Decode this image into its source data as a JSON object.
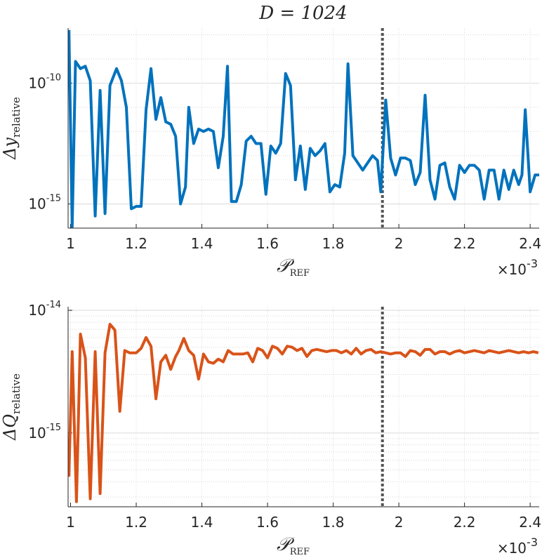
{
  "chart_data": [
    {
      "type": "line",
      "title": "D = 1024",
      "x_label": {
        "main": "𝒫",
        "sub": "REF"
      },
      "x_multiplier": {
        "base": "×10",
        "exponent": "-3"
      },
      "y_label": {
        "main": "Δy",
        "sub": "relative"
      },
      "xlim": [
        0.9925,
        2.4275
      ],
      "xticks": [
        1,
        1.2,
        1.4,
        1.6,
        1.8,
        2,
        2.2,
        2.4
      ],
      "ylim": [
        1e-16,
        1.9e-08
      ],
      "yscale": "log",
      "yticks": [
        {
          "value": 1e-15,
          "label": "10",
          "exponent": "-15"
        },
        {
          "value": 1e-10,
          "label": "10",
          "exponent": "-10"
        }
      ],
      "grid": true,
      "minor_grid": true,
      "reference_x": 1.95,
      "x": [
        0.995,
        1.005,
        1.015,
        1.03,
        1.045,
        1.06,
        1.075,
        1.09,
        1.105,
        1.12,
        1.14,
        1.155,
        1.17,
        1.185,
        1.2,
        1.215,
        1.23,
        1.245,
        1.26,
        1.275,
        1.29,
        1.305,
        1.32,
        1.335,
        1.35,
        1.36,
        1.375,
        1.39,
        1.405,
        1.42,
        1.435,
        1.45,
        1.465,
        1.478,
        1.49,
        1.505,
        1.52,
        1.535,
        1.55,
        1.565,
        1.58,
        1.595,
        1.61,
        1.625,
        1.64,
        1.655,
        1.67,
        1.685,
        1.7,
        1.715,
        1.73,
        1.745,
        1.76,
        1.775,
        1.79,
        1.805,
        1.82,
        1.835,
        1.845,
        1.86,
        1.875,
        1.89,
        1.905,
        1.92,
        1.935,
        1.945,
        1.96,
        1.975,
        1.99,
        2.005,
        2.02,
        2.035,
        2.05,
        2.065,
        2.08,
        2.095,
        2.11,
        2.125,
        2.14,
        2.155,
        2.17,
        2.185,
        2.2,
        2.215,
        2.23,
        2.245,
        2.26,
        2.275,
        2.29,
        2.305,
        2.32,
        2.335,
        2.35,
        2.365,
        2.375,
        2.385,
        2.4,
        2.415,
        2.43
      ],
      "series": [
        {
          "color": "#0072bd",
          "values": [
            1.58e-08,
            1.12e-16,
            7.94e-10,
            3.98e-10,
            5.01e-10,
            1.26e-10,
            3.16e-16,
            5.01e-11,
            3.98e-16,
            7.94e-11,
            3.98e-10,
            1.26e-10,
            1e-11,
            6.31e-16,
            7.94e-16,
            7.94e-16,
            7.94e-12,
            3.98e-10,
            3.16e-12,
            2.51e-11,
            2.51e-12,
            2e-12,
            6.31e-13,
            1e-15,
            5.01e-15,
            1e-11,
            3.16e-13,
            1.26e-12,
            1e-12,
            1.26e-12,
            1e-12,
            3.16e-14,
            6.31e-13,
            5.01e-10,
            1.26e-15,
            1.26e-15,
            6.31e-15,
            3.98e-13,
            6.31e-13,
            3.16e-13,
            3.16e-13,
            2.51e-15,
            2.51e-13,
            1.26e-13,
            3.16e-13,
            2.51e-10,
            7.94e-11,
            1e-14,
            2.51e-13,
            3.98e-15,
            2e-13,
            1e-13,
            1.58e-13,
            3.16e-13,
            3.16e-15,
            6.31e-15,
            5.01e-15,
            1.26e-13,
            6.31e-10,
            1e-13,
            5.01e-14,
            2.51e-14,
            5.01e-14,
            1e-13,
            6.31e-14,
            3.16e-15,
            2e-11,
            7.94e-14,
            1.58e-14,
            7.94e-14,
            7.94e-14,
            6.31e-14,
            6.31e-15,
            2e-14,
            3.16e-11,
            1e-14,
            1.58e-15,
            3.98e-14,
            5.01e-14,
            5.01e-15,
            1.58e-15,
            3.98e-14,
            2e-14,
            3.98e-14,
            3.98e-14,
            2.51e-14,
            1.58e-15,
            2.51e-14,
            2.51e-14,
            1.58e-15,
            2.51e-14,
            3.98e-15,
            2.51e-14,
            6.31e-15,
            1.58e-14,
            7.94e-12,
            3.16e-15,
            1.58e-14,
            1.58e-14
          ]
        }
      ]
    },
    {
      "type": "line",
      "x_label": {
        "main": "𝒫",
        "sub": "REF"
      },
      "x_multiplier": {
        "base": "×10",
        "exponent": "-3"
      },
      "y_label": {
        "main": "ΔQ",
        "sub": "relative"
      },
      "xlim": [
        0.9925,
        2.4275
      ],
      "xticks": [
        1,
        1.2,
        1.4,
        1.6,
        1.8,
        2,
        2.2,
        2.4
      ],
      "ylim": [
        2.5e-16,
        1.07e-14
      ],
      "yscale": "log",
      "yticks": [
        {
          "value": 1e-15,
          "label": "10",
          "exponent": "-15"
        },
        {
          "value": 1e-14,
          "label": "10",
          "exponent": "-14"
        }
      ],
      "grid": true,
      "minor_grid": true,
      "reference_x": 1.95,
      "x": [
        0.995,
        1.005,
        1.018,
        1.03,
        1.045,
        1.06,
        1.075,
        1.09,
        1.105,
        1.12,
        1.135,
        1.15,
        1.165,
        1.18,
        1.2,
        1.215,
        1.23,
        1.245,
        1.26,
        1.275,
        1.29,
        1.305,
        1.32,
        1.33,
        1.345,
        1.36,
        1.375,
        1.39,
        1.405,
        1.42,
        1.435,
        1.45,
        1.465,
        1.48,
        1.495,
        1.51,
        1.525,
        1.54,
        1.555,
        1.57,
        1.585,
        1.6,
        1.615,
        1.63,
        1.645,
        1.66,
        1.675,
        1.69,
        1.705,
        1.72,
        1.735,
        1.75,
        1.765,
        1.78,
        1.795,
        1.81,
        1.825,
        1.84,
        1.855,
        1.87,
        1.885,
        1.9,
        1.915,
        1.93,
        1.945,
        1.96,
        1.975,
        1.99,
        2.005,
        2.02,
        2.035,
        2.05,
        2.065,
        2.08,
        2.095,
        2.11,
        2.125,
        2.14,
        2.155,
        2.17,
        2.185,
        2.2,
        2.215,
        2.23,
        2.245,
        2.26,
        2.275,
        2.29,
        2.305,
        2.32,
        2.335,
        2.35,
        2.365,
        2.38,
        2.395,
        2.41,
        2.425
      ],
      "series": [
        {
          "color": "#d95319",
          "values": [
            4.4e-16,
            4.6e-15,
            2.75e-16,
            6.4e-15,
            4.1e-15,
            2.9e-16,
            4.6e-15,
            3.2e-16,
            4.5e-15,
            7.7e-15,
            6.9e-15,
            1.5e-15,
            4.7e-15,
            4.5e-15,
            4.5e-15,
            4.9e-15,
            6e-15,
            5.1e-15,
            1.9e-15,
            3.8e-15,
            4.3e-15,
            3.3e-15,
            4.2e-15,
            4.7e-15,
            5.9e-15,
            4.7e-15,
            4.3e-15,
            2.75e-15,
            4.4e-15,
            3.8e-15,
            3.7e-15,
            4e-15,
            3.8e-15,
            4.7e-15,
            4.4e-15,
            4.4e-15,
            4.4e-15,
            4.5e-15,
            3.8e-15,
            4.9e-15,
            4.7e-15,
            4.1e-15,
            5.1e-15,
            4.9e-15,
            4.4e-15,
            5.1e-15,
            5e-15,
            4.7e-15,
            4.9e-15,
            4.2e-15,
            4.7e-15,
            4.8e-15,
            4.7e-15,
            4.6e-15,
            4.7e-15,
            4.7e-15,
            4.5e-15,
            4.7e-15,
            4.4e-15,
            4.9e-15,
            4.4e-15,
            4.7e-15,
            4.8e-15,
            4.5e-15,
            4.6e-15,
            4.5e-15,
            4.4e-15,
            4.5e-15,
            4.5e-15,
            4.2e-15,
            4.7e-15,
            4.6e-15,
            4.3e-15,
            4.8e-15,
            4.8e-15,
            4.4e-15,
            4.6e-15,
            4.6e-15,
            4.4e-15,
            4.6e-15,
            4.7e-15,
            4.5e-15,
            4.6e-15,
            4.7e-15,
            4.6e-15,
            4.5e-15,
            4.7e-15,
            4.6e-15,
            4.5e-15,
            4.6e-15,
            4.7e-15,
            4.6e-15,
            4.5e-15,
            4.6e-15,
            4.5e-15,
            4.6e-15,
            4.5e-15
          ]
        }
      ]
    }
  ]
}
